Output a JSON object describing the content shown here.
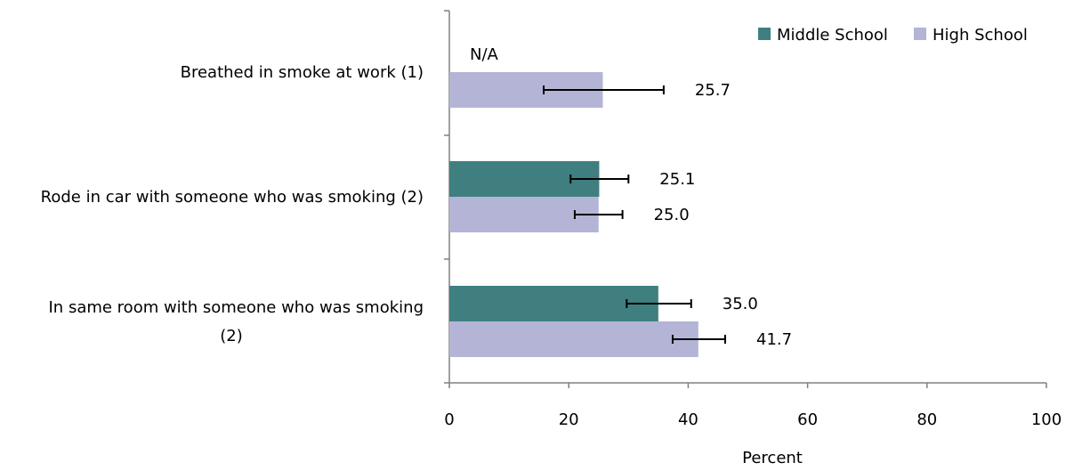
{
  "chart_data": {
    "type": "bar",
    "orientation": "horizontal",
    "title": "",
    "xlabel": "Percent",
    "ylabel": "",
    "xlim": [
      0,
      100
    ],
    "xticks": [
      "0",
      "20",
      "40",
      "60",
      "80",
      "100"
    ],
    "xtick_values": [
      0,
      20,
      40,
      60,
      80,
      100
    ],
    "legend_position": "top-right",
    "grid": false,
    "categories": [
      {
        "lines": [
          "Breathed in smoke at work (1)"
        ]
      },
      {
        "lines": [
          "Rode in car with someone who was smoking (2)"
        ]
      },
      {
        "lines": [
          "In same room with someone who was smoking",
          "(2)"
        ]
      }
    ],
    "series": [
      {
        "name": "Middle School",
        "color": "#3f7f80",
        "values": [
          null,
          25.1,
          35.0
        ],
        "labels": [
          "N/A",
          "25.1",
          "35.0"
        ],
        "error_low": [
          null,
          20.3,
          29.7
        ],
        "error_high": [
          null,
          30.0,
          40.5
        ]
      },
      {
        "name": "High School",
        "color": "#b4b4d6",
        "values": [
          25.7,
          25.0,
          41.7
        ],
        "labels": [
          "25.7",
          "25.0",
          "41.7"
        ],
        "error_low": [
          15.8,
          21.0,
          37.4
        ],
        "error_high": [
          35.9,
          29.0,
          46.2
        ]
      }
    ]
  }
}
